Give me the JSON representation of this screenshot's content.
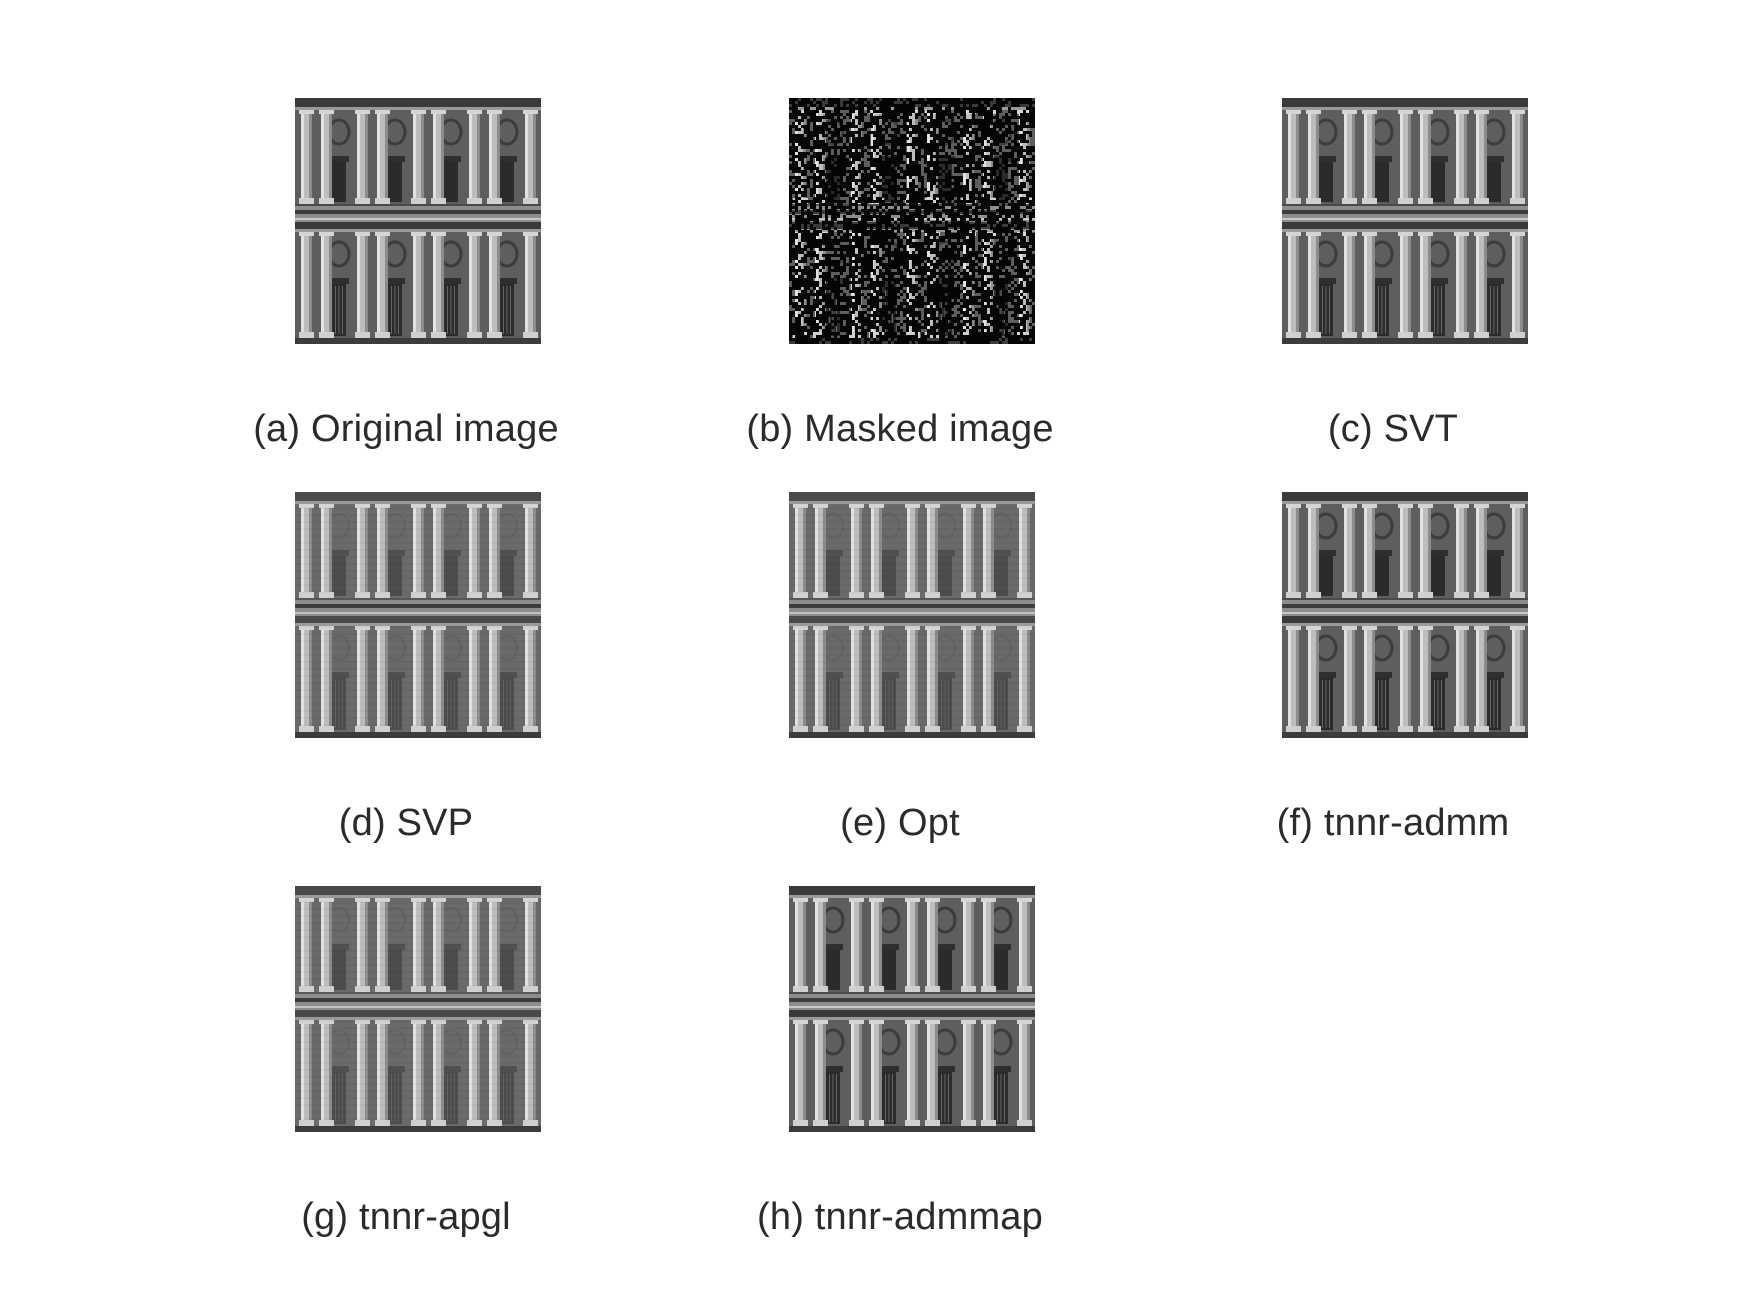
{
  "figure": {
    "panels": [
      {
        "id": "a",
        "caption": "(a) Original image",
        "variant": "sharp"
      },
      {
        "id": "b",
        "caption": "(b) Masked image",
        "variant": "masked"
      },
      {
        "id": "c",
        "caption": "(c) SVT",
        "variant": "sharp"
      },
      {
        "id": "d",
        "caption": "(d) SVP",
        "variant": "blurred"
      },
      {
        "id": "e",
        "caption": "(e) Opt",
        "variant": "blurred"
      },
      {
        "id": "f",
        "caption": "(f) tnnr-admm",
        "variant": "sharp"
      },
      {
        "id": "g",
        "caption": "(g) tnnr-apgl",
        "variant": "blurred"
      },
      {
        "id": "h",
        "caption": "(h) tnnr-admmap",
        "variant": "sharp"
      }
    ]
  }
}
